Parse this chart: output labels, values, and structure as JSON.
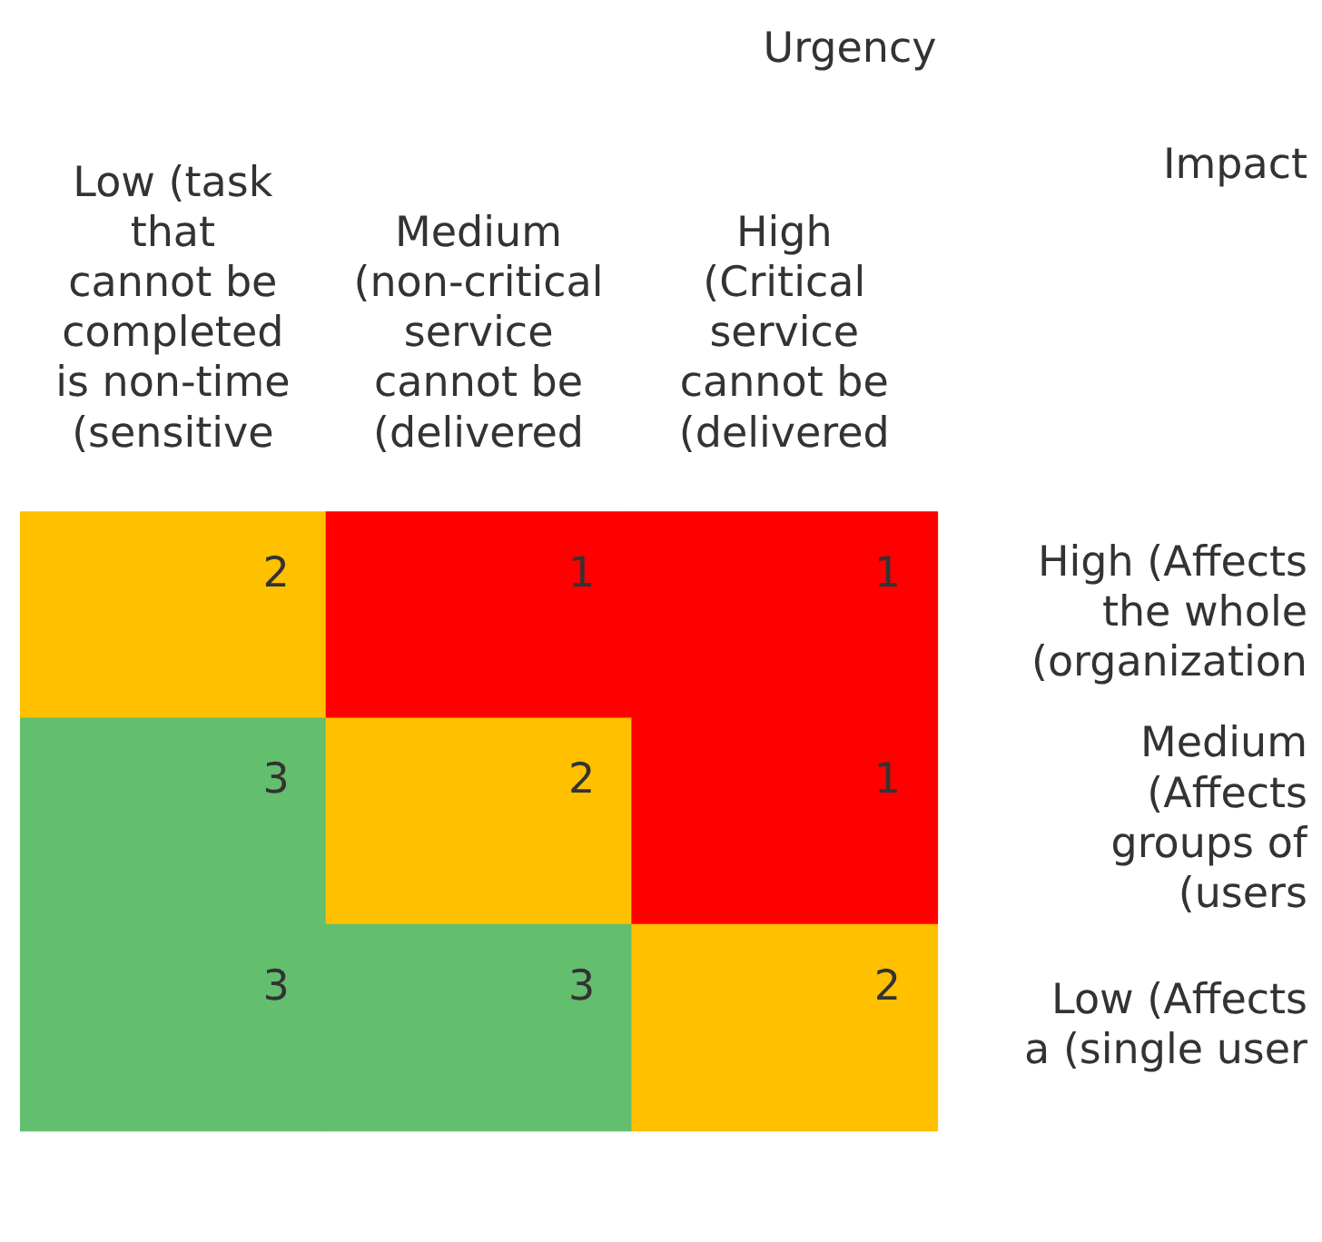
{
  "chart_data": {
    "type": "heatmap",
    "xlabel": "Urgency",
    "ylabel": "Impact",
    "categories": [
      "Low (task that cannot be completed is non-time (sensitive",
      "Medium (non-critical service cannot be (delivered",
      "High (Critical service cannot be (delivered"
    ],
    "y_categories": [
      "High (Affects the whole (organization",
      "Medium (Affects groups of (users",
      "Low (Affects a (single user"
    ],
    "cells": [
      [
        2,
        1,
        1
      ],
      [
        3,
        2,
        1
      ],
      [
        3,
        3,
        2
      ]
    ],
    "data_labels": true,
    "colors": [
      [
        "#ffc000",
        "#ff0000",
        "#ff0000"
      ],
      [
        "#63be6e",
        "#ffc000",
        "#ff0000"
      ],
      [
        "#63be6e",
        "#63be6e",
        "#ffc000"
      ]
    ]
  }
}
